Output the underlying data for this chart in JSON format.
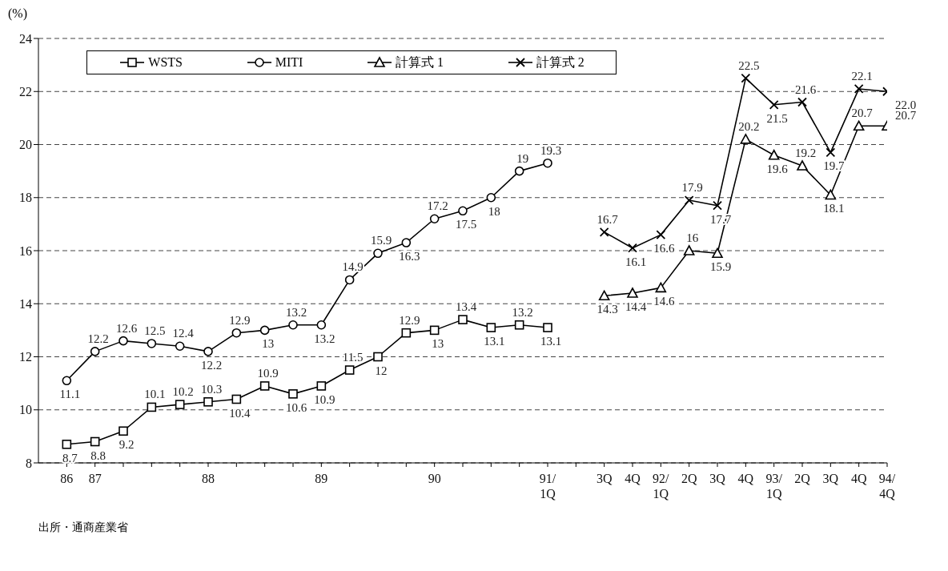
{
  "chart_data": {
    "type": "line",
    "ylabel": "(%)",
    "categories": [
      "86",
      "87",
      null,
      null,
      null,
      "88",
      null,
      null,
      null,
      "89",
      null,
      null,
      null,
      "90",
      null,
      null,
      null,
      "91/1Q",
      null,
      "3Q",
      "4Q",
      "92/1Q",
      "2Q",
      "3Q",
      "4Q",
      "93/1Q",
      "2Q",
      "3Q",
      "4Q",
      "94/4Q"
    ],
    "series": [
      {
        "name": "WSTS",
        "color": "#000000",
        "marker": "square",
        "values": [
          8.7,
          8.8,
          9.2,
          10.1,
          10.2,
          10.3,
          10.4,
          10.9,
          10.6,
          10.9,
          11.5,
          12,
          12.9,
          13,
          13.4,
          13.1,
          13.2,
          13.1,
          null,
          null,
          null,
          null,
          null,
          null,
          null,
          null,
          null,
          null,
          null,
          null
        ],
        "value_labels": [
          "8.7",
          "8.8",
          "9.2",
          "10.1",
          "10.2",
          "10.3",
          "10.4",
          "10.9",
          "10.6",
          "10.9",
          "11.5",
          "12",
          "12.9",
          "13",
          "13.4",
          "13.1",
          "13.2",
          "13.1",
          null,
          null,
          null,
          null,
          null,
          null,
          null,
          null,
          null,
          null,
          null,
          null
        ]
      },
      {
        "name": "MITI",
        "color": "#000000",
        "marker": "circle",
        "values": [
          11.1,
          12.2,
          12.6,
          12.5,
          12.4,
          12.2,
          12.9,
          13,
          13.2,
          13.2,
          14.9,
          15.9,
          16.3,
          17.2,
          17.5,
          18,
          19,
          19.3,
          null,
          null,
          null,
          null,
          null,
          null,
          null,
          null,
          null,
          null,
          null,
          null
        ],
        "value_labels": [
          "11.1",
          "12.2",
          "12.6",
          "12.5",
          "12.4",
          "12.2",
          "12.9",
          "13",
          "13.2",
          "13.2",
          "14.9",
          "15.9",
          "16.3",
          "17.2",
          "17.5",
          "18",
          "19",
          "19.3",
          null,
          null,
          null,
          null,
          null,
          null,
          null,
          null,
          null,
          null,
          null,
          null
        ]
      },
      {
        "name": "計算式 1",
        "color": "#000000",
        "marker": "triangle",
        "values": [
          null,
          null,
          null,
          null,
          null,
          null,
          null,
          null,
          null,
          null,
          null,
          null,
          null,
          null,
          null,
          null,
          null,
          null,
          null,
          14.3,
          14.4,
          14.6,
          16,
          15.9,
          20.2,
          19.6,
          19.2,
          18.1,
          20.7,
          20.7
        ],
        "value_labels": [
          null,
          null,
          null,
          null,
          null,
          null,
          null,
          null,
          null,
          null,
          null,
          null,
          null,
          null,
          null,
          null,
          null,
          null,
          null,
          "14.3",
          "14.4",
          "14.6",
          "16",
          "15.9",
          "20.2",
          "19.6",
          "19.2",
          "18.1",
          "20.7",
          "20.7"
        ]
      },
      {
        "name": "計算式 2",
        "color": "#000000",
        "marker": "cross",
        "values": [
          null,
          null,
          null,
          null,
          null,
          null,
          null,
          null,
          null,
          null,
          null,
          null,
          null,
          null,
          null,
          null,
          null,
          null,
          null,
          16.7,
          16.1,
          16.6,
          17.9,
          17.7,
          22.5,
          21.5,
          21.6,
          19.7,
          22.1,
          22.0
        ],
        "value_labels": [
          null,
          null,
          null,
          null,
          null,
          null,
          null,
          null,
          null,
          null,
          null,
          null,
          null,
          null,
          null,
          null,
          null,
          null,
          null,
          "16.7",
          "16.1",
          "16.6",
          "17.9",
          "17.7",
          "22.5",
          "21.5",
          "21.6",
          "19.7",
          "22.1",
          "22.0"
        ]
      }
    ],
    "ylim": [
      8,
      24
    ],
    "yticks": [
      8,
      10,
      12,
      14,
      16,
      18,
      20,
      22,
      24
    ],
    "grid": "y",
    "legend": "top left",
    "line_style": "solid",
    "annotations": [
      "出所・通商産業省"
    ]
  }
}
